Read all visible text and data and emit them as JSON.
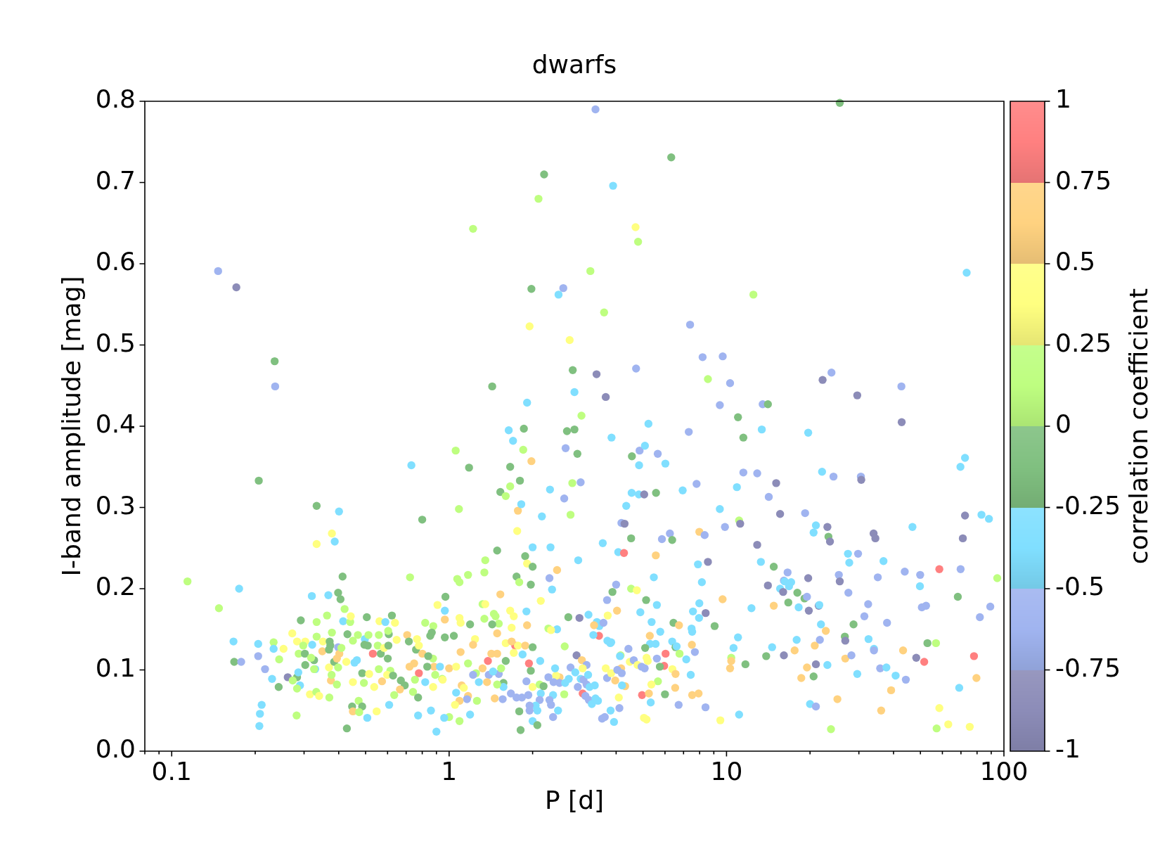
{
  "chart_data": {
    "type": "scatter",
    "title": "dwarfs",
    "xlabel": "P [d]",
    "ylabel": "I-band amplitude [mag]",
    "clabel": "correlation coefficient",
    "log": "x",
    "marker": "circle",
    "xlim": [
      0.08,
      100
    ],
    "xticks": [
      {
        "value": 0.08,
        "label": null
      },
      {
        "value": 0.09,
        "label": null
      },
      0.1,
      {
        "value": 0.2,
        "label": null
      },
      {
        "value": 0.3,
        "label": null
      },
      {
        "value": 0.4,
        "label": null
      },
      {
        "value": 0.5,
        "label": null
      },
      {
        "value": 0.6,
        "label": null
      },
      {
        "value": 0.7,
        "label": null
      },
      {
        "value": 0.8,
        "label": null
      },
      {
        "value": 0.9,
        "label": null
      },
      1,
      {
        "value": 2,
        "label": null
      },
      {
        "value": 3,
        "label": null
      },
      {
        "value": 4,
        "label": null
      },
      {
        "value": 5,
        "label": null
      },
      {
        "value": 6,
        "label": null
      },
      {
        "value": 7,
        "label": null
      },
      {
        "value": 8,
        "label": null
      },
      {
        "value": 9,
        "label": null
      },
      10,
      {
        "value": 20,
        "label": null
      },
      {
        "value": 30,
        "label": null
      },
      {
        "value": 40,
        "label": null
      },
      {
        "value": 50,
        "label": null
      },
      {
        "value": 60,
        "label": null
      },
      {
        "value": 70,
        "label": null
      },
      {
        "value": 80,
        "label": null
      },
      {
        "value": 90,
        "label": null
      },
      100
    ],
    "ylim": [
      0,
      0.8
    ],
    "yticks": [
      {
        "value": 0,
        "label": "0.0"
      },
      0.1,
      0.2,
      0.3,
      0.4,
      0.5,
      0.6,
      0.7,
      0.8
    ],
    "clim": [
      -1,
      1
    ],
    "cticks": [
      -1,
      -0.75,
      -0.5,
      -0.25,
      0,
      0.25,
      0.5,
      0.75,
      1
    ],
    "x": [
      0.147,
      0.171,
      0.235,
      0.236,
      0.206,
      0.114,
      0.148,
      0.175,
      0.333,
      0.401,
      0.378,
      0.333,
      0.387,
      0.413,
      0.731,
      0.8,
      0.723,
      1.22,
      1.056,
      1.085,
      1.18,
      1.43,
      1.49,
      2.2,
      2.1,
      1.64,
      1.7,
      1.66,
      1.66,
      1.8,
      1.86,
      1.85,
      1.91,
      1.98,
      1.95,
      1.98,
      1.77,
      1.82,
      2.0,
      2.16,
      2.31,
      2.32,
      2.58,
      2.48,
      2.72,
      2.79,
      2.83,
      2.66,
      2.83,
      2.63,
      2.9,
      2.78,
      2.98,
      2.74,
      2.92,
      3.23,
      3.37,
      3.4,
      3.62,
      3.67,
      3.9,
      3.85,
      4.7,
      4.8,
      4.72,
      4.56,
      4.86,
      4.84,
      5.23,
      5.08,
      4.55,
      4.83,
      5.05,
      5.57,
      5.65,
      6.02,
      6.32,
      7.39,
      7.31,
      6.95,
      7.8,
      8.2,
      9.69,
      9.46,
      8.57,
      10.3,
      12.5,
      11.0,
      11.5,
      11.5,
      10.9,
      13.5,
      14.1,
      13.4,
      12.9,
      15.1,
      14.2,
      15.6,
      19.2,
      19.7,
      22.2,
      23.9,
      22.1,
      25.6,
      24.3,
      29.6,
      30.5,
      30.6,
      42.7,
      42.8,
      73.4,
      72.4,
      69.7,
      1.53,
      1.6,
      1.76,
      2.6,
      3.0,
      4.35,
      9.46,
      9.87,
      4.18,
      4.29,
      4.53,
      3.58,
      4.07,
      4.27,
      5.56,
      5.85,
      6.25,
      6.37,
      7.98,
      8.34,
      8.57,
      7.89,
      5.47,
      8.15,
      9.68,
      4.0,
      3.88,
      3.71,
      4.53,
      4.75,
      5.13,
      5.61,
      4.03,
      3.73,
      3.18,
      2.95,
      2.69,
      4.89,
      5.37,
      7.98,
      7.57,
      7.96,
      8.41,
      6.44,
      6.74,
      9.06,
      7.48,
      7.52,
      5.77,
      5.29,
      5.3,
      5.55,
      5.09,
      6.37,
      6.55,
      6.61,
      7.5,
      7.69,
      6.77,
      7.16,
      6.03,
      5.96,
      5.75,
      5.61,
      5.15,
      5.2,
      6.38,
      6.55,
      7.43,
      5.66,
      5.36,
      6.53,
      6.0,
      7.52,
      7.93,
      8.4,
      9.5,
      6.72,
      4.96,
      5.25,
      5.33,
      5.04,
      5.15,
      4.09,
      4.11,
      3.82,
      3.56,
      3.64,
      3.93,
      4.31,
      4.2,
      3.97,
      3.71,
      3.67,
      3.84,
      4.17,
      4.04,
      4.19,
      4.43,
      4.15,
      4.13,
      4.48,
      4.63,
      4.78,
      4.94,
      5.07,
      3.72,
      3.81,
      3.84,
      3.47,
      3.31,
      3.41,
      3.48,
      3.6,
      3.33,
      2.45,
      2.28,
      2.33,
      2.61,
      2.88,
      3.01,
      3.13,
      3.03,
      2.74,
      2.85,
      2.7,
      2.5,
      2.43,
      2.41,
      2.28,
      2.38,
      2.5,
      2.62,
      2.91,
      2.98,
      3.05,
      3.17,
      3.13,
      3.21,
      3.03,
      3.1,
      3.19,
      3.37,
      3.44,
      3.27,
      3.35,
      2.6,
      2.37,
      2.3,
      2.33,
      2.47,
      2.37,
      2.14,
      2.12,
      2.05,
      2.08,
      1.93,
      1.95,
      1.95,
      2.0,
      2.08,
      1.81,
      1.79,
      1.83,
      1.75,
      1.67,
      1.56,
      1.9,
      2.0,
      2.12,
      2.19,
      1.97,
      1.94,
      1.84,
      1.73,
      1.77,
      1.88,
      2.0,
      1.71,
      2.13,
      1.6,
      1.68,
      1.6,
      1.57,
      1.57,
      1.49,
      1.51,
      1.39,
      1.44,
      1.54,
      1.38,
      1.42,
      1.49,
      1.32,
      1.25,
      1.22,
      1.28,
      1.37,
      1.17,
      1.46,
      1.26,
      1.19,
      1.09,
      1.0,
      0.96,
      0.9,
      1.06,
      1.17,
      1.16,
      1.09,
      1.05,
      1.11,
      1.13,
      0.876,
      0.86,
      0.97,
      0.908,
      0.965,
      0.965,
      1.09,
      1.1,
      1.19,
      1.34,
      1.32,
      1.35,
      1.45,
      1.47,
      1.51,
      1.43,
      1.53,
      1.35,
      1.34,
      1.17,
      1.07,
      1.09,
      1.66,
      1.71,
      1.68,
      1.49,
      1.91,
      1.9,
      2.14,
      1.75,
      1.79,
      1.97,
      1.88,
      1.91,
      2.0,
      2.45,
      2.3,
      2.35,
      1.04,
      0.965,
      1.24,
      1.22,
      1.1,
      0.883,
      0.927,
      1.0,
      1.06,
      0.875,
      0.944,
      0.948,
      0.891,
      0.32,
      0.367,
      0.398,
      0.406,
      0.42,
      0.363,
      0.292,
      0.333,
      0.415,
      0.44,
      0.442,
      0.505,
      0.622,
      0.561,
      0.589,
      0.638,
      0.82,
      0.877,
      0.272,
      0.233,
      0.233,
      0.253,
      0.244,
      0.205,
      0.205,
      0.217,
      0.23,
      0.243,
      0.167,
      0.168,
      0.178,
      0.211,
      0.208,
      0.207,
      0.282,
      0.262,
      0.283,
      0.273,
      0.286,
      0.29,
      0.283,
      0.283,
      0.303,
      0.298,
      0.287,
      0.302,
      0.303,
      0.321,
      0.333,
      0.326,
      0.329,
      0.318,
      0.326,
      0.351,
      0.349,
      0.369,
      0.371,
      0.373,
      0.378,
      0.315,
      0.332,
      0.34,
      0.37,
      0.375,
      0.377,
      0.369,
      0.385,
      0.394,
      0.398,
      0.398,
      0.402,
      0.409,
      0.394,
      0.43,
      0.45,
      0.469,
      0.497,
      0.512,
      0.426,
      0.456,
      0.465,
      0.45,
      0.493,
      0.495,
      0.509,
      0.531,
      0.567,
      0.486,
      0.515,
      0.553,
      0.583,
      0.604,
      0.606,
      0.603,
      0.558,
      0.647,
      0.601,
      0.558,
      0.614,
      0.598,
      0.628,
      0.67,
      0.573,
      0.537,
      0.548,
      0.608,
      0.634,
      0.472,
      0.447,
      0.486,
      0.45,
      0.474,
      0.507,
      0.428,
      0.706,
      0.716,
      0.766,
      0.76,
      0.778,
      0.801,
      0.841,
      0.855,
      0.866,
      0.72,
      0.748,
      0.778,
      0.753,
      0.692,
      0.741,
      0.773,
      0.665,
      0.82,
      0.773,
      0.834,
      11.1,
      11.2,
      21.0,
      20.6,
      23.1,
      23.3,
      23.6,
      83,
      88.3,
      72.4,
      71.1,
      46.8,
      33.9,
      34.4,
      12.9,
      13.3,
      14.8,
      27.4,
      29.8,
      27.7,
      36.8,
      58.5,
      69.8,
      94.6,
      16.6,
      16.1,
      16.2,
      17.1,
      16.8,
      14.1,
      15.6,
      16.0,
      19.7,
      18.0,
      19.1,
      19.5,
      19.8,
      18.2,
      16.7,
      12.3,
      21.5,
      21.6,
      25.4,
      25.6,
      27.5,
      35.1,
      43.9,
      49.9,
      49.8,
      68.2,
      32.4,
      31.4,
      37.9,
      50.6,
      52.4,
      89.3,
      81.9,
      14.8,
      21.9,
      22.8,
      28.7,
      11.0,
      10.6,
      10.4,
      10.4,
      10.3,
      11.7,
      13.9,
      14.6,
      16.1,
      17.6,
      17.9,
      20.8,
      21.7,
      21.0,
      19.5,
      18.6,
      20.6,
      23.1,
      26.7,
      26.8,
      26.8,
      28.2,
      29.6,
      32.5,
      34.0,
      34.0,
      35.8,
      37.7,
      40.7,
      44.3,
      43.3,
      48.3,
      51.6,
      53.0,
      56.9,
      78.0,
      79.6,
      69.0,
      39.2,
      36.1,
      25.1,
      20.0,
      21.0,
      11.1,
      23.8,
      58.5,
      57.2,
      63.0,
      75.3
    ],
    "values": [
      0.591,
      0.571,
      0.48,
      0.449,
      0.333,
      0.209,
      0.176,
      0.2,
      0.302,
      0.295,
      0.268,
      0.255,
      0.258,
      0.215,
      0.352,
      0.285,
      0.214,
      0.643,
      0.37,
      0.298,
      0.349,
      0.449,
      0.247,
      0.71,
      0.68,
      0.395,
      0.382,
      0.35,
      0.326,
      0.333,
      0.397,
      0.371,
      0.429,
      0.569,
      0.523,
      0.357,
      0.296,
      0.304,
      0.251,
      0.289,
      0.322,
      0.251,
      0.57,
      0.562,
      0.506,
      0.469,
      0.442,
      0.394,
      0.396,
      0.373,
      0.366,
      0.33,
      0.331,
      0.291,
      0.235,
      0.591,
      0.79,
      0.464,
      0.54,
      0.436,
      0.696,
      0.386,
      0.645,
      0.627,
      0.471,
      0.363,
      0.37,
      0.352,
      0.403,
      0.376,
      0.318,
      0.316,
      0.316,
      0.318,
      0.366,
      0.354,
      0.731,
      0.525,
      0.393,
      0.321,
      0.329,
      0.485,
      0.486,
      0.426,
      0.458,
      0.453,
      0.562,
      0.411,
      0.386,
      0.343,
      0.325,
      0.427,
      0.427,
      0.396,
      0.342,
      0.33,
      0.313,
      0.292,
      0.293,
      0.392,
      0.457,
      0.466,
      0.344,
      0.798,
      0.338,
      0.438,
      0.338,
      0.334,
      0.449,
      0.405,
      0.589,
      0.361,
      0.35,
      0.319,
      0.314,
      0.271,
      0.311,
      0.413,
      0.302,
      0.298,
      0.276,
      0.281,
      0.28,
      0.262,
      0.256,
      0.245,
      0.244,
      0.241,
      0.261,
      0.268,
      0.26,
      0.27,
      0.266,
      0.233,
      0.23,
      0.214,
      0.208,
      0.187,
      0.205,
      0.196,
      0.186,
      0.2,
      0.198,
      0.186,
      0.18,
      0.173,
      0.167,
      0.168,
      0.164,
      0.165,
      0.171,
      0.159,
      0.182,
      0.172,
      0.164,
      0.17,
      0.158,
      0.155,
      0.154,
      0.151,
      0.147,
      0.147,
      0.142,
      0.132,
      0.132,
      0.127,
      0.135,
      0.128,
      0.129,
      0.131,
      0.122,
      0.12,
      0.113,
      0.12,
      0.105,
      0.104,
      0.114,
      0.115,
      0.111,
      0.101,
      0.095,
      0.094,
      0.086,
      0.082,
      0.078,
      0.07,
      0.069,
      0.071,
      0.054,
      0.038,
      0.057,
      0.069,
      0.071,
      0.06,
      0.041,
      0.039,
      0.066,
      0.053,
      0.05,
      0.04,
      0.042,
      0.036,
      0.08,
      0.081,
      0.087,
      0.09,
      0.102,
      0.096,
      0.102,
      0.1,
      0.096,
      0.126,
      0.118,
      0.117,
      0.11,
      0.112,
      0.106,
      0.104,
      0.102,
      0.136,
      0.133,
      0.134,
      0.142,
      0.143,
      0.159,
      0.154,
      0.158,
      0.155,
      0.15,
      0.151,
      0.149,
      0.129,
      0.118,
      0.112,
      0.106,
      0.102,
      0.103,
      0.097,
      0.089,
      0.091,
      0.093,
      0.102,
      0.091,
      0.085,
      0.084,
      0.084,
      0.079,
      0.089,
      0.088,
      0.094,
      0.082,
      0.079,
      0.071,
      0.068,
      0.063,
      0.065,
      0.062,
      0.058,
      0.081,
      0.07,
      0.069,
      0.063,
      0.057,
      0.05,
      0.042,
      0.071,
      0.063,
      0.056,
      0.05,
      0.069,
      0.056,
      0.05,
      0.037,
      0.032,
      0.026,
      0.049,
      0.066,
      0.066,
      0.071,
      0.064,
      0.086,
      0.079,
      0.082,
      0.08,
      0.099,
      0.108,
      0.119,
      0.13,
      0.13,
      0.13,
      0.128,
      0.121,
      0.111,
      0.133,
      0.135,
      0.111,
      0.084,
      0.079,
      0.082,
      0.095,
      0.094,
      0.098,
      0.102,
      0.111,
      0.12,
      0.12,
      0.102,
      0.096,
      0.094,
      0.085,
      0.085,
      0.108,
      0.065,
      0.062,
      0.045,
      0.037,
      0.042,
      0.041,
      0.024,
      0.072,
      0.068,
      0.064,
      0.062,
      0.057,
      0.081,
      0.078,
      0.079,
      0.05,
      0.19,
      0.18,
      0.173,
      0.162,
      0.164,
      0.158,
      0.156,
      0.163,
      0.181,
      0.181,
      0.169,
      0.166,
      0.157,
      0.156,
      0.193,
      0.235,
      0.22,
      0.217,
      0.212,
      0.208,
      0.173,
      0.166,
      0.152,
      0.145,
      0.155,
      0.172,
      0.185,
      0.215,
      0.208,
      0.205,
      0.24,
      0.231,
      0.227,
      0.223,
      0.213,
      0.199,
      0.142,
      0.14,
      0.138,
      0.131,
      0.122,
      0.104,
      0.104,
      0.102,
      0.104,
      0.114,
      0.089,
      0.088,
      0.094,
      0.191,
      0.192,
      0.195,
      0.187,
      0.175,
      0.167,
      0.161,
      0.159,
      0.16,
      0.159,
      0.166,
      0.165,
      0.167,
      0.16,
      0.159,
      0.158,
      0.158,
      0.154,
      0.145,
      0.134,
      0.126,
      0.126,
      0.113,
      0.132,
      0.117,
      0.101,
      0.089,
      0.079,
      0.135,
      0.11,
      0.11,
      0.057,
      0.046,
      0.031,
      0.044,
      0.091,
      0.091,
      0.087,
      0.097,
      0.081,
      0.077,
      0.135,
      0.135,
      0.13,
      0.12,
      0.12,
      0.106,
      0.131,
      0.141,
      0.112,
      0.101,
      0.115,
      0.101,
      0.135,
      0.123,
      0.125,
      0.135,
      0.13,
      0.146,
      0.07,
      0.073,
      0.068,
      0.066,
      0.087,
      0.094,
      0.103,
      0.11,
      0.082,
      0.103,
      0.128,
      0.12,
      0.127,
      0.114,
      0.144,
      0.136,
      0.143,
      0.138,
      0.143,
      0.11,
      0.109,
      0.112,
      0.085,
      0.084,
      0.131,
      0.13,
      0.12,
      0.12,
      0.096,
      0.095,
      0.13,
      0.127,
      0.13,
      0.144,
      0.148,
      0.143,
      0.137,
      0.114,
      0.101,
      0.099,
      0.094,
      0.093,
      0.087,
      0.086,
      0.079,
      0.049,
      0.057,
      0.069,
      0.062,
      0.055,
      0.055,
      0.049,
      0.048,
      0.041,
      0.028,
      0.143,
      0.135,
      0.138,
      0.125,
      0.13,
      0.12,
      0.117,
      0.142,
      0.146,
      0.104,
      0.108,
      0.096,
      0.088,
      0.081,
      0.073,
      0.066,
      0.076,
      0.085,
      0.044,
      0.104,
      0.284,
      0.28,
      0.278,
      0.269,
      0.276,
      0.264,
      0.258,
      0.291,
      0.286,
      0.29,
      0.262,
      0.276,
      0.268,
      0.262,
      0.254,
      0.233,
      0.227,
      0.243,
      0.243,
      0.232,
      0.234,
      0.224,
      0.224,
      0.213,
      0.22,
      0.21,
      0.209,
      0.208,
      0.203,
      0.204,
      0.2,
      0.196,
      0.213,
      0.195,
      0.188,
      0.19,
      0.173,
      0.177,
      0.183,
      0.176,
      0.179,
      0.18,
      0.217,
      0.209,
      0.195,
      0.214,
      0.221,
      0.217,
      0.203,
      0.19,
      0.181,
      0.166,
      0.158,
      0.177,
      0.179,
      0.178,
      0.165,
      0.179,
      0.156,
      0.148,
      0.156,
      0.14,
      0.127,
      0.115,
      0.111,
      0.102,
      0.107,
      0.117,
      0.128,
      0.118,
      0.124,
      0.137,
      0.13,
      0.137,
      0.107,
      0.103,
      0.09,
      0.092,
      0.106,
      0.141,
      0.136,
      0.114,
      0.118,
      0.095,
      0.138,
      0.126,
      0.124,
      0.102,
      0.103,
      0.093,
      0.088,
      0.124,
      0.115,
      0.11,
      0.133,
      0.133,
      0.117,
      0.09,
      0.078,
      0.075,
      0.05,
      0.064,
      0.058,
      0.055,
      0.045,
      0.027,
      0.053,
      0.028,
      0.033,
      0.03
    ],
    "cvalues": [
      -0.625,
      -0.875,
      -0.125,
      -0.625,
      -0.125,
      0.125,
      0.125,
      -0.375,
      -0.125,
      -0.375,
      0.375,
      0.375,
      -0.375,
      -0.125,
      -0.375,
      -0.125,
      0.125,
      0.125,
      0.125,
      0.125,
      -0.125,
      -0.125,
      -0.125,
      -0.125,
      0.125,
      -0.375,
      -0.375,
      -0.125,
      0.125,
      -0.125,
      -0.125,
      0.125,
      -0.375,
      -0.125,
      0.375,
      0.625,
      0.625,
      -0.375,
      -0.375,
      -0.375,
      -0.375,
      -0.375,
      -0.625,
      -0.375,
      0.375,
      -0.125,
      -0.375,
      -0.125,
      -0.125,
      -0.625,
      -0.125,
      0.125,
      -0.625,
      0.125,
      -0.375,
      0.125,
      -0.625,
      -0.875,
      0.125,
      -0.875,
      -0.375,
      -0.375,
      0.375,
      0.125,
      -0.625,
      -0.125,
      -0.625,
      -0.375,
      -0.375,
      -0.375,
      -0.375,
      -0.375,
      -0.875,
      -0.125,
      -0.625,
      -0.375,
      -0.125,
      -0.625,
      -0.625,
      -0.375,
      -0.625,
      -0.625,
      -0.625,
      -0.625,
      0.125,
      -0.625,
      0.125,
      -0.125,
      -0.125,
      -0.625,
      -0.375,
      -0.625,
      -0.125,
      -0.375,
      -0.625,
      -0.875,
      -0.625,
      -0.875,
      -0.625,
      -0.375,
      -0.875,
      -0.625,
      -0.375,
      -0.125,
      -0.625,
      -0.875,
      -0.625,
      -0.875,
      -0.625,
      -0.875,
      -0.375,
      -0.375,
      -0.375,
      -0.125,
      0.125,
      0.375,
      -0.625,
      0.125,
      -0.375,
      -0.375,
      -0.625,
      -0.625,
      -0.875,
      -0.125,
      -0.375,
      -0.375,
      0.875,
      0.625,
      -0.625,
      -0.625,
      -0.125,
      0.625,
      -0.625,
      -0.875,
      -0.375,
      -0.375,
      -0.375,
      0.625,
      -0.625,
      -0.125,
      -0.625,
      0.125,
      0.375,
      -0.125,
      -0.375,
      0.625,
      0.375,
      -0.375,
      -0.875,
      -0.125,
      -0.375,
      -0.375,
      -0.375,
      -0.375,
      -0.375,
      -0.875,
      -0.125,
      0.625,
      -0.125,
      -0.375,
      -0.375,
      -0.375,
      0.625,
      -0.375,
      -0.375,
      -0.125,
      -0.375,
      -0.125,
      -0.375,
      0.625,
      -0.625,
      0.125,
      -0.375,
      0.875,
      0.875,
      -0.125,
      -0.625,
      0.375,
      0.375,
      0.375,
      0.625,
      -0.375,
      0.125,
      0.375,
      0.625,
      -0.125,
      0.625,
      0.625,
      -0.625,
      0.375,
      -0.625,
      0.875,
      0.625,
      -0.375,
      0.375,
      0.375,
      0.375,
      -0.625,
      -0.375,
      -0.625,
      -0.625,
      -0.375,
      0.625,
      -0.375,
      0.625,
      -0.625,
      0.375,
      0.375,
      0.625,
      -0.625,
      -0.625,
      -0.625,
      0.125,
      -0.375,
      0.375,
      -0.625,
      0.375,
      -0.625,
      -0.625,
      -0.375,
      -0.375,
      -0.375,
      0.875,
      -0.375,
      -0.375,
      -0.375,
      -0.625,
      0.625,
      -0.375,
      0.125,
      0.375,
      0.125,
      -0.875,
      0.625,
      -0.625,
      0.375,
      -0.625,
      -0.375,
      -0.375,
      0.625,
      0.375,
      -0.375,
      -0.625,
      -0.625,
      -0.625,
      -0.375,
      -0.625,
      -0.375,
      -0.625,
      -0.375,
      -0.625,
      -0.375,
      0.875,
      -0.625,
      -0.625,
      -0.375,
      -0.375,
      -0.375,
      -0.375,
      0.125,
      -0.375,
      -0.625,
      -0.625,
      -0.375,
      -0.625,
      -0.375,
      -0.625,
      -0.375,
      -0.375,
      -0.625,
      -0.625,
      -0.625,
      -0.375,
      -0.125,
      -0.125,
      -0.125,
      -0.625,
      -0.625,
      -0.625,
      -0.625,
      -0.625,
      0.375,
      0.125,
      -0.125,
      -0.125,
      0.875,
      -0.375,
      0.875,
      0.375,
      0.625,
      -0.125,
      0.375,
      -0.375,
      0.375,
      0.625,
      -0.125,
      -0.125,
      -0.375,
      0.125,
      -0.625,
      -0.625,
      -0.375,
      0.125,
      0.875,
      0.625,
      0.625,
      0.625,
      0.125,
      -0.625,
      -0.375,
      0.625,
      0.125,
      0.625,
      0.125,
      -0.375,
      0.125,
      0.125,
      -0.375,
      -0.375,
      -0.375,
      0.625,
      -0.625,
      0.625,
      0.375,
      0.625,
      0.375,
      0.375,
      -0.375,
      -0.125,
      0.375,
      -0.375,
      0.625,
      0.375,
      0.375,
      -0.125,
      0.125,
      0.125,
      0.375,
      0.125,
      0.125,
      0.125,
      -0.125,
      0.625,
      0.125,
      0.125,
      0.125,
      0.125,
      0.125,
      0.375,
      0.375,
      0.375,
      0.625,
      0.625,
      -0.375,
      0.375,
      -0.125,
      0.125,
      -0.125,
      -0.125,
      0.375,
      -0.125,
      0.625,
      -0.625,
      -0.375,
      -0.125,
      -0.125,
      0.375,
      0.625,
      0.625,
      0.625,
      -0.375,
      0.625,
      0.375,
      0.125,
      0.125,
      0.375,
      0.125,
      -0.375,
      -0.375,
      -0.125,
      -0.125,
      0.125,
      0.125,
      -0.125,
      0.125,
      -0.375,
      0.125,
      0.375,
      -0.125,
      -0.125,
      0.375,
      -0.375,
      0.375,
      0.125,
      0.125,
      0.375,
      0.125,
      -0.375,
      0.375,
      0.125,
      -0.375,
      -0.625,
      -0.625,
      -0.375,
      -0.125,
      -0.375,
      -0.125,
      -0.625,
      -0.375,
      -0.375,
      -0.375,
      0.125,
      -0.875,
      -0.125,
      0.125,
      -0.375,
      -0.375,
      0.125,
      0.375,
      0.375,
      0.125,
      0.125,
      -0.125,
      -0.125,
      -0.375,
      0.125,
      -0.125,
      -0.375,
      0.125,
      0.125,
      0.375,
      0.625,
      -0.125,
      -0.125,
      -0.125,
      0.125,
      0.375,
      0.125,
      0.375,
      0.125,
      0.625,
      0.125,
      0.375,
      -0.125,
      0.125,
      0.125,
      -0.625,
      0.625,
      0.125,
      0.625,
      -0.125,
      0.125,
      0.125,
      -0.375,
      0.125,
      0.375,
      -0.375,
      -0.375,
      0.375,
      0.125,
      -0.125,
      -0.125,
      0.875,
      -0.125,
      -0.125,
      0.375,
      0.125,
      0.375,
      -0.125,
      -0.125,
      0.125,
      0.125,
      0.375,
      -0.125,
      0.125,
      0.125,
      0.375,
      -0.125,
      -0.125,
      0.625,
      0.375,
      0.375,
      -0.375,
      0.125,
      0.125,
      -0.125,
      -0.125,
      0.625,
      0.125,
      -0.375,
      -0.125,
      0.625,
      -0.125,
      0.375,
      -0.125,
      0.375,
      0.625,
      -0.125,
      -0.125,
      -0.125,
      0.625,
      0.625,
      0.875,
      0.125,
      -0.125,
      0.125,
      -0.125,
      0.625,
      -0.375,
      -0.375,
      -0.125,
      0.125,
      -0.875,
      -0.375,
      -0.375,
      -0.875,
      -0.125,
      -0.875,
      -0.375,
      -0.375,
      -0.875,
      -0.875,
      -0.375,
      -0.875,
      -0.875,
      -0.875,
      -0.375,
      -0.125,
      -0.375,
      -0.625,
      -0.375,
      -0.375,
      0.875,
      -0.625,
      0.125,
      -0.625,
      -0.625,
      -0.375,
      -0.375,
      -0.375,
      -0.875,
      -0.375,
      -0.875,
      -0.875,
      -0.125,
      -0.125,
      -0.625,
      -0.875,
      -0.375,
      -0.125,
      -0.375,
      -0.875,
      -0.375,
      -0.625,
      -0.875,
      -0.625,
      -0.625,
      -0.625,
      -0.625,
      -0.375,
      -0.125,
      -0.625,
      -0.625,
      -0.625,
      -0.625,
      -0.625,
      -0.625,
      -0.625,
      0.625,
      -0.375,
      0.625,
      -0.125,
      -0.375,
      -0.375,
      0.125,
      0.625,
      0.625,
      -0.125,
      -0.125,
      -0.375,
      -0.875,
      0.625,
      -0.375,
      0.625,
      -0.625,
      -0.875,
      0.625,
      0.625,
      -0.125,
      -0.375,
      -0.125,
      -0.875,
      0.625,
      -0.625,
      -0.375,
      -0.375,
      -0.375,
      -0.625,
      -0.625,
      -0.375,
      -0.375,
      -0.625,
      0.625,
      -0.875,
      0.875,
      -0.125,
      0.125,
      0.875,
      0.625,
      -0.375,
      0.625,
      0.625,
      0.625,
      -0.375,
      -0.625,
      -0.375,
      0.125,
      0.375,
      0.125,
      0.375,
      0.375
    ]
  }
}
